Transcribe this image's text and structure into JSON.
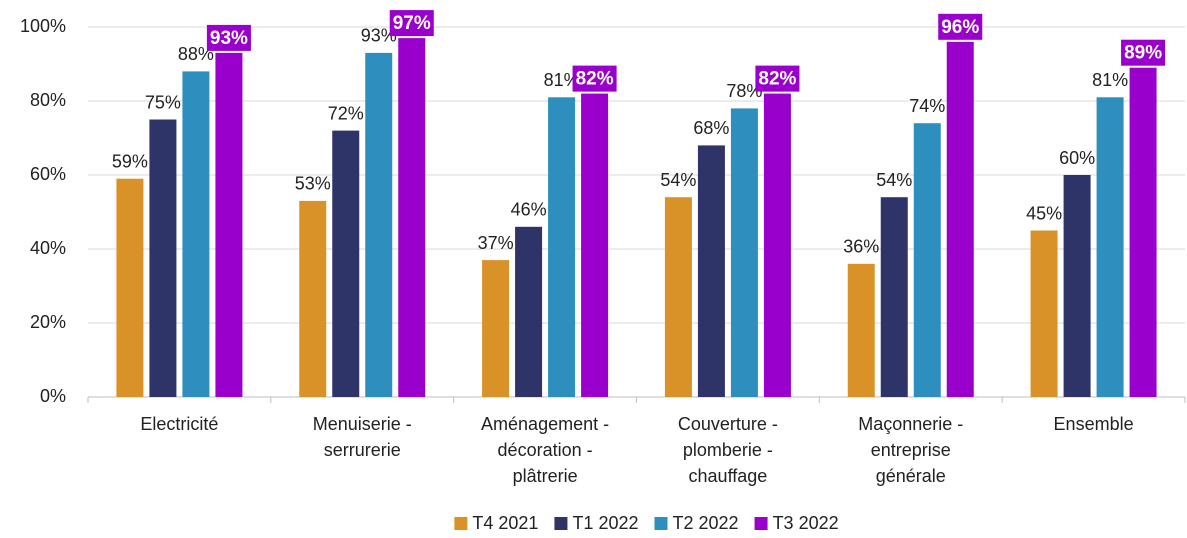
{
  "chart_data": {
    "type": "bar",
    "categories": [
      "Electricité",
      "Menuiserie -\nserrurerie",
      "Aménagement -\ndécoration -\nplâtrerie",
      "Couverture -\nplomberie -\nchauffage",
      "Maçonnerie -\nentreprise\ngénérale",
      "Ensemble"
    ],
    "series": [
      {
        "name": "T4 2021",
        "color": "#D89228",
        "values": [
          59,
          53,
          37,
          54,
          36,
          45
        ],
        "value_labels": [
          "59%",
          "53%",
          "37%",
          "54%",
          "36%",
          "45%"
        ]
      },
      {
        "name": "T1 2022",
        "color": "#2E3468",
        "values": [
          75,
          72,
          46,
          68,
          54,
          60
        ],
        "value_labels": [
          "75%",
          "72%",
          "46%",
          "68%",
          "54%",
          "60%"
        ]
      },
      {
        "name": "T2 2022",
        "color": "#2E8FBF",
        "values": [
          88,
          93,
          81,
          78,
          74,
          81
        ],
        "value_labels": [
          "88%",
          "93%",
          "81%",
          "78%",
          "74%",
          "81%"
        ]
      },
      {
        "name": "T3 2022",
        "color": "#9900CC",
        "values": [
          93,
          97,
          82,
          82,
          96,
          89
        ],
        "value_labels": [
          "93%",
          "97%",
          "82%",
          "82%",
          "96%",
          "89%"
        ]
      }
    ],
    "ylim": [
      0,
      100
    ],
    "yticks": [
      {
        "value": 0,
        "label": "0%"
      },
      {
        "value": 20,
        "label": "20%"
      },
      {
        "value": 40,
        "label": "40%"
      },
      {
        "value": 60,
        "label": "60%"
      },
      {
        "value": 80,
        "label": "80%"
      },
      {
        "value": 100,
        "label": "100%"
      }
    ],
    "grid": true,
    "legend": "bottom"
  }
}
